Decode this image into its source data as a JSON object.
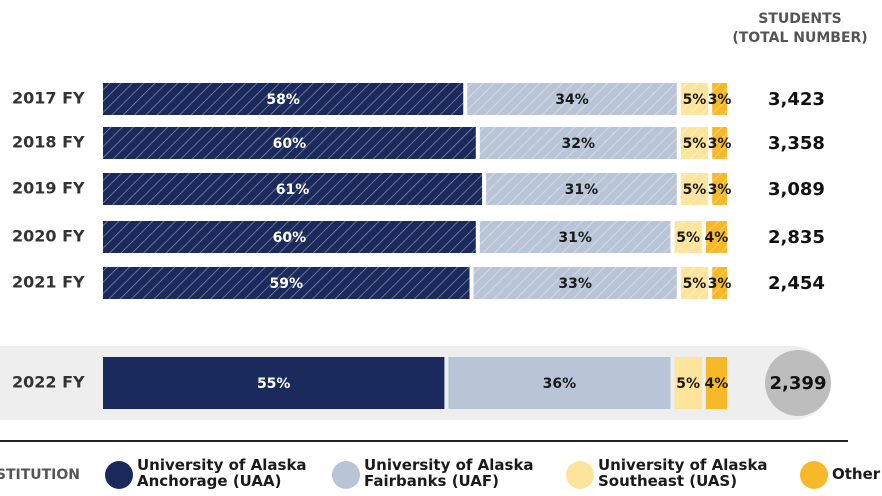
{
  "chart_data": {
    "type": "bar",
    "column_header": [
      "STUDENTS",
      "(TOTAL NUMBER)"
    ],
    "categories": [
      "2017 FY",
      "2018 FY",
      "2019 FY",
      "2020 FY",
      "2021 FY",
      "2022 FY"
    ],
    "hatched": [
      true,
      true,
      true,
      true,
      true,
      false
    ],
    "series": [
      {
        "name": "University of Alaska Anchorage (UAA)",
        "color": "#1b2a5c",
        "label_color": "#ffffff",
        "values": [
          58,
          60,
          61,
          60,
          59,
          55
        ],
        "value_labels": [
          "58%",
          "60%",
          "61%",
          "60%",
          "59%",
          "55%"
        ]
      },
      {
        "name": "University of Alaska Fairbanks (UAF)",
        "color": "#b9c5d7",
        "label_color": "#1a1a1a",
        "values": [
          34,
          32,
          31,
          31,
          33,
          36
        ],
        "value_labels": [
          "34%",
          "32%",
          "31%",
          "31%",
          "33%",
          "36%"
        ]
      },
      {
        "name": "University of Alaska Southeast (UAS)",
        "color": "#fde49c",
        "label_color": "#1a1a1a",
        "values": [
          5,
          5,
          5,
          5,
          5,
          5
        ],
        "value_labels": [
          "5%",
          "5%",
          "5%",
          "5%",
          "5%",
          "5%"
        ]
      },
      {
        "name": "Other",
        "color": "#f7b928",
        "label_color": "#1a1a1a",
        "values": [
          3,
          3,
          3,
          4,
          3,
          4
        ],
        "value_labels": [
          "3%",
          "3%",
          "3%",
          "4%",
          "3%",
          "4%"
        ]
      }
    ],
    "totals": {
      "values": [
        3423,
        3358,
        3089,
        2835,
        2454,
        2399
      ],
      "value_labels": [
        "3,423",
        "3,358",
        "3,089",
        "2,835",
        "2,454",
        "2,399"
      ]
    },
    "legend_title": "INSTITUTION"
  }
}
